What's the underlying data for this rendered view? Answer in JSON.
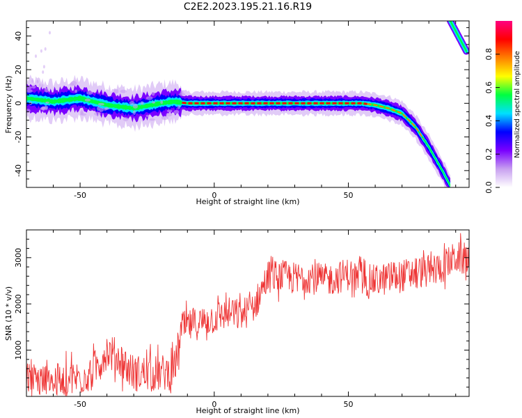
{
  "title": "C2E2.2023.195.21.16.R19",
  "colors": {
    "snr_line": "#ee3333",
    "spectrum_background": "#ffffff",
    "colormap": [
      "#ffffff",
      "#c8a0f0",
      "#7a00ff",
      "#0000ff",
      "#00e0ff",
      "#00ff40",
      "#ffff00",
      "#ff8000",
      "#ff0000",
      "#ff0080"
    ]
  },
  "chart_data": [
    {
      "type": "heatmap",
      "name": "spectrogram",
      "xlabel": "Height of straight line (km)",
      "ylabel": "Frequency (Hz)",
      "xlim": [
        -70,
        95
      ],
      "ylim": [
        -50,
        49
      ],
      "xticks": [
        -50,
        0,
        50
      ],
      "yticks": [
        -40,
        -20,
        0,
        20,
        40
      ],
      "colorbar": {
        "label": "Normalized spectral amplitude",
        "range": [
          0,
          1
        ],
        "ticks": [
          "0.0",
          "0.2",
          "0.4",
          "0.6",
          "0.8"
        ]
      },
      "ridge": {
        "x": [
          -70,
          -60,
          -50,
          -40,
          -30,
          -20,
          -15,
          -10,
          0,
          10,
          20,
          30,
          40,
          50,
          55,
          60,
          65,
          70,
          75,
          80,
          85,
          88
        ],
        "y": [
          3,
          1,
          3,
          -1,
          -3,
          0,
          1,
          0,
          0,
          0,
          0,
          0,
          0,
          0,
          0,
          -1,
          -3,
          -6,
          -14,
          -26,
          -40,
          -49
        ]
      },
      "alias_branch": {
        "x": [
          88,
          94
        ],
        "y": [
          49,
          31
        ]
      }
    },
    {
      "type": "line",
      "name": "snr",
      "xlabel": "Height of straight line (km)",
      "ylabel": "SNR (10 * v/v)",
      "xlim": [
        -70,
        95
      ],
      "ylim": [
        0,
        3600
      ],
      "xticks": [
        -50,
        0,
        50
      ],
      "yticks": [
        1000,
        2000,
        3000
      ],
      "trend": {
        "x": [
          -70,
          -60,
          -50,
          -45,
          -40,
          -35,
          -30,
          -25,
          -20,
          -15,
          -12,
          -10,
          -5,
          0,
          5,
          10,
          15,
          20,
          25,
          30,
          35,
          40,
          45,
          50,
          55,
          60,
          65,
          70,
          75,
          80,
          85,
          90,
          95
        ],
        "y": [
          350,
          300,
          400,
          550,
          1000,
          800,
          500,
          500,
          500,
          550,
          1500,
          1500,
          1600,
          1700,
          1800,
          1750,
          1950,
          2600,
          2600,
          2550,
          2600,
          2500,
          2550,
          2650,
          2500,
          2500,
          2550,
          2600,
          2700,
          2700,
          2800,
          3000,
          2950
        ]
      },
      "noise_amplitude": 450
    }
  ]
}
